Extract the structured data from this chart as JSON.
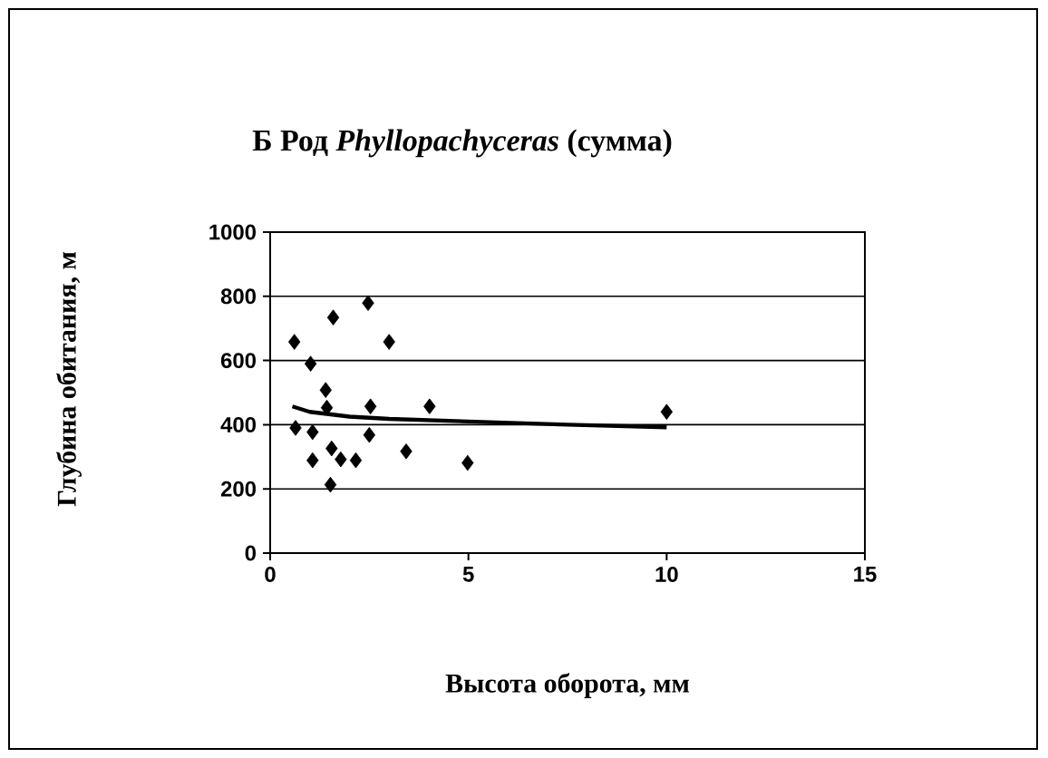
{
  "chart_data": {
    "type": "scatter",
    "title": "Б      Род *Phyllopachyceras* (сумма)",
    "xlabel": "Высота оборота, мм",
    "ylabel": "Глубина обитания, м",
    "xlim": [
      0,
      15
    ],
    "xticks": [
      0,
      5,
      10,
      15
    ],
    "ylim": [
      0,
      1000
    ],
    "yticks": [
      0,
      200,
      400,
      600,
      800,
      1000
    ],
    "grid": "y",
    "marker": "diamond",
    "series": [
      {
        "color": "#000000",
        "x": [
          0.61,
          1.02,
          1.59,
          2.47,
          3.0,
          1.4,
          1.43,
          2.53,
          4.02,
          10.0,
          0.64,
          1.07,
          2.5,
          3.43,
          1.07,
          1.55,
          1.78,
          2.16,
          1.52,
          4.98
        ],
        "values": [
          658,
          590,
          734,
          779,
          658,
          508,
          453,
          457,
          457,
          440,
          390,
          377,
          368,
          317,
          289,
          326,
          292,
          289,
          213,
          281
        ]
      },
      {
        "type": "line",
        "color": "#000000",
        "marker": "none",
        "line_style": "solid",
        "x": [
          0.56,
          1,
          2,
          3,
          5,
          7.5,
          10
        ],
        "values": [
          457,
          440,
          425,
          418,
          410,
          400,
          392
        ]
      }
    ]
  }
}
